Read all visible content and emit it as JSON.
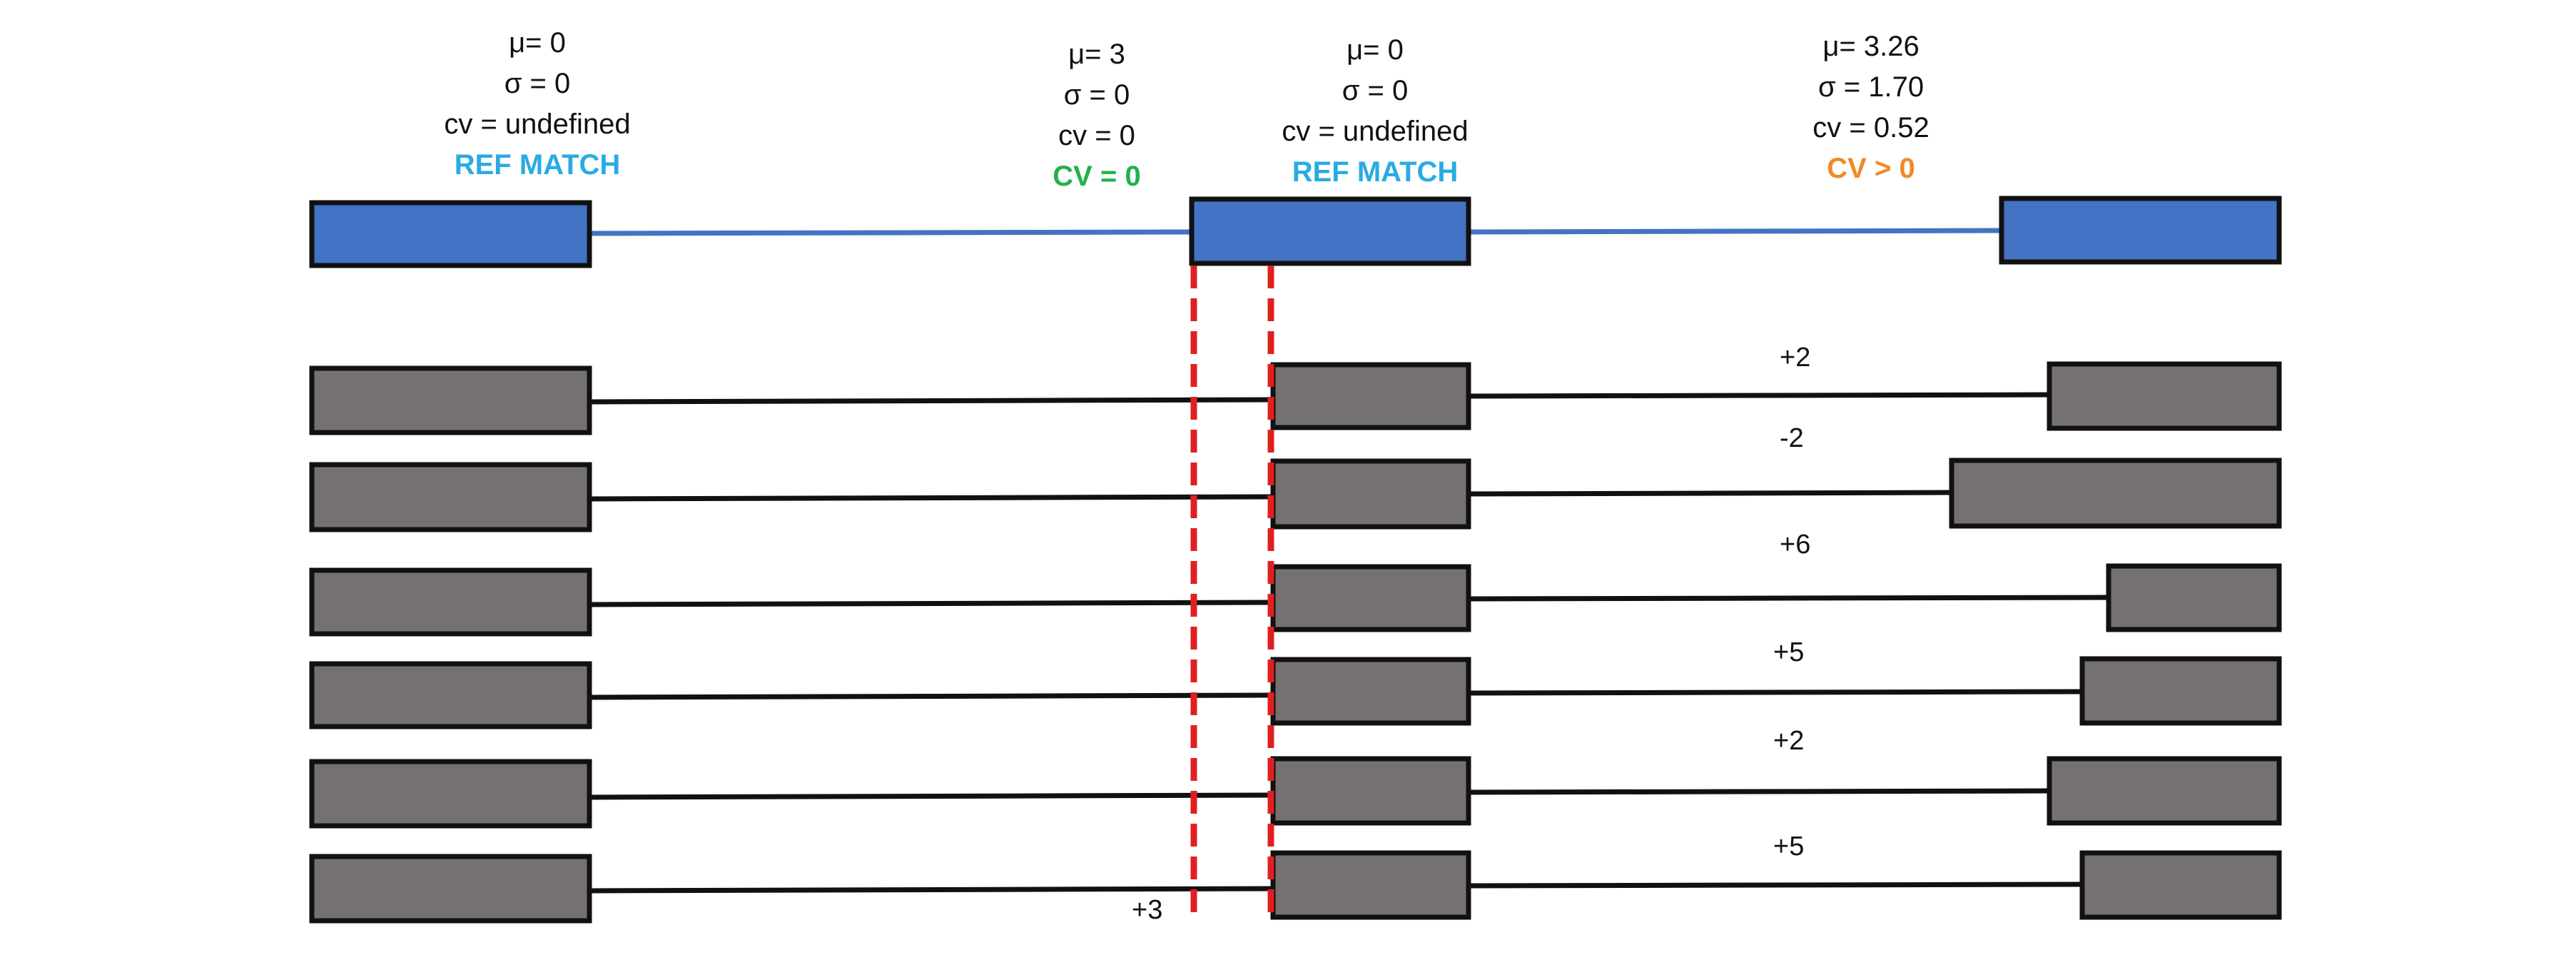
{
  "colors": {
    "ref_fill": "#4472c4",
    "read_fill": "#767171",
    "border": "#111111",
    "ref_line": "#4472c4",
    "read_line": "#111111",
    "dash": "#e02020",
    "tag_blue": "#29abe2",
    "tag_green": "#22b14c",
    "tag_orange": "#f08a24"
  },
  "labels": {
    "exon1": {
      "mu": "μ= 0",
      "sigma": "σ = 0",
      "cv": "cv = undefined",
      "tag": "REF MATCH",
      "tag_color": "tag_blue"
    },
    "intron_start": {
      "mu": "μ= 3",
      "sigma": "σ = 0",
      "cv": "cv = 0",
      "tag": "CV = 0",
      "tag_color": "tag_green"
    },
    "exon2": {
      "mu": "μ= 0",
      "sigma": "σ = 0",
      "cv": "cv = undefined",
      "tag": "REF MATCH",
      "tag_color": "tag_blue"
    },
    "exon3": {
      "mu": "μ= 3.26",
      "sigma": "σ = 1.70",
      "cv": "cv = 0.52",
      "tag": "CV > 0",
      "tag_color": "tag_orange"
    }
  },
  "offsets": {
    "reads": [
      "+2",
      "-2",
      "+6",
      "+5",
      "+2",
      "+5"
    ],
    "intron_shift": "+3"
  }
}
